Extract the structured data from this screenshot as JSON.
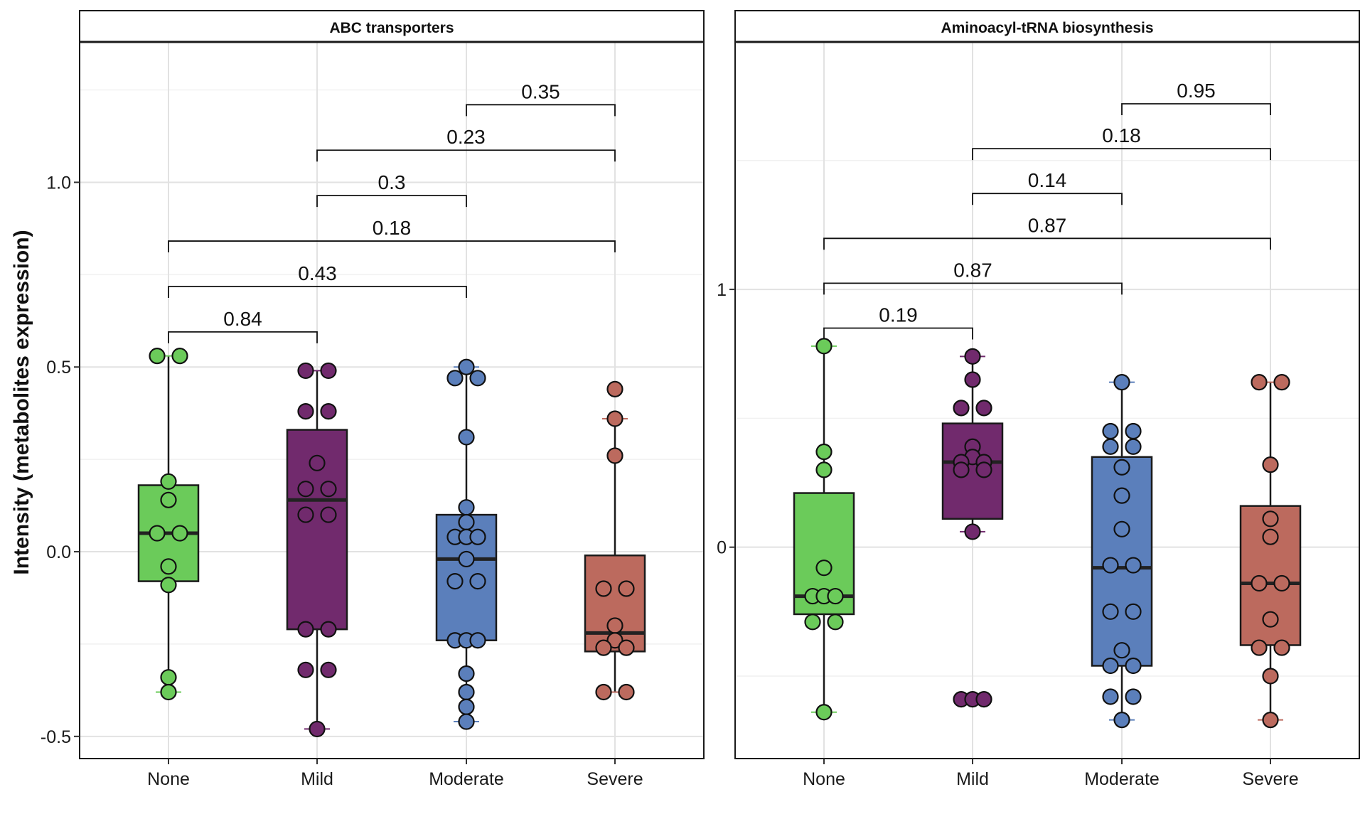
{
  "chart_data": {
    "type": "boxplot",
    "ylabel": "Intensity (metabolites expression)",
    "categories": [
      "None",
      "Mild",
      "Moderate",
      "Severe"
    ],
    "colors": {
      "None": "#6bcb5a",
      "Mild": "#712a6d",
      "Moderate": "#5b7fbb",
      "Severe": "#bc6a5e"
    },
    "panels": [
      {
        "title": "ABC transporters",
        "ylim": [
          -0.56,
          1.38
        ],
        "yticks": [
          -0.5,
          0.0,
          0.5,
          1.0
        ],
        "ytick_labels": [
          "-0.5",
          "0.0",
          "0.5",
          "1.0"
        ],
        "yminor": [
          -0.25,
          0.25,
          0.75,
          1.25
        ],
        "boxes": [
          {
            "group": "None",
            "min": -0.38,
            "q1": -0.08,
            "median": 0.05,
            "q3": 0.18,
            "max": 0.53
          },
          {
            "group": "Mild",
            "min": -0.48,
            "q1": -0.21,
            "median": 0.14,
            "q3": 0.33,
            "max": 0.49
          },
          {
            "group": "Moderate",
            "min": -0.46,
            "q1": -0.24,
            "median": -0.02,
            "q3": 0.1,
            "max": 0.5
          },
          {
            "group": "Severe",
            "min": -0.38,
            "q1": -0.27,
            "median": -0.22,
            "q3": -0.01,
            "max": 0.36
          }
        ],
        "points": [
          {
            "group": "None",
            "values": [
              0.53,
              0.53,
              0.19,
              0.14,
              0.05,
              0.05,
              -0.04,
              -0.09,
              -0.34,
              -0.38
            ]
          },
          {
            "group": "Mild",
            "values": [
              0.49,
              0.49,
              0.38,
              0.38,
              0.24,
              0.17,
              0.17,
              0.1,
              0.1,
              -0.21,
              -0.21,
              -0.32,
              -0.32,
              -0.48
            ]
          },
          {
            "group": "Moderate",
            "values": [
              0.5,
              0.47,
              0.47,
              0.31,
              0.12,
              0.08,
              0.04,
              0.04,
              0.04,
              -0.02,
              -0.08,
              -0.08,
              -0.24,
              -0.24,
              -0.24,
              -0.33,
              -0.38,
              -0.42,
              -0.46
            ]
          },
          {
            "group": "Severe",
            "values": [
              0.44,
              0.36,
              0.26,
              -0.1,
              -0.1,
              -0.2,
              -0.24,
              -0.26,
              -0.26,
              -0.38,
              -0.38
            ]
          }
        ],
        "comparisons": [
          {
            "from": "None",
            "to": "Mild",
            "p": "0.84",
            "y": 0.595
          },
          {
            "from": "None",
            "to": "Moderate",
            "p": "0.43",
            "y": 0.718
          },
          {
            "from": "None",
            "to": "Severe",
            "p": "0.18",
            "y": 0.841
          },
          {
            "from": "Mild",
            "to": "Moderate",
            "p": "0.3",
            "y": 0.964
          },
          {
            "from": "Mild",
            "to": "Severe",
            "p": "0.23",
            "y": 1.087
          },
          {
            "from": "Moderate",
            "to": "Severe",
            "p": "0.35",
            "y": 1.21
          }
        ]
      },
      {
        "title": "Aminoacyl-tRNA biosynthesis",
        "ylim": [
          -0.82,
          1.96
        ],
        "yticks": [
          0,
          1
        ],
        "ytick_labels": [
          "0",
          "1"
        ],
        "yminor": [
          -0.5,
          0.5,
          1.5
        ],
        "boxes": [
          {
            "group": "None",
            "min": -0.64,
            "q1": -0.26,
            "median": -0.19,
            "q3": 0.21,
            "max": 0.78
          },
          {
            "group": "Mild",
            "min": 0.06,
            "q1": 0.11,
            "median": 0.33,
            "q3": 0.48,
            "max": 0.74
          },
          {
            "group": "Moderate",
            "min": -0.67,
            "q1": -0.46,
            "median": -0.08,
            "q3": 0.35,
            "max": 0.64
          },
          {
            "group": "Severe",
            "min": -0.67,
            "q1": -0.38,
            "median": -0.14,
            "q3": 0.16,
            "max": 0.64
          }
        ],
        "points": [
          {
            "group": "None",
            "values": [
              0.78,
              0.37,
              0.3,
              -0.08,
              -0.19,
              -0.19,
              -0.19,
              -0.29,
              -0.29,
              -0.64
            ]
          },
          {
            "group": "Mild",
            "values": [
              0.74,
              0.65,
              0.54,
              0.54,
              0.39,
              0.35,
              0.33,
              0.33,
              0.3,
              0.3,
              0.06,
              -0.59,
              -0.59,
              -0.59
            ]
          },
          {
            "group": "Moderate",
            "values": [
              0.64,
              0.45,
              0.45,
              0.39,
              0.39,
              0.31,
              0.2,
              0.07,
              -0.07,
              -0.07,
              -0.25,
              -0.25,
              -0.4,
              -0.46,
              -0.46,
              -0.58,
              -0.58,
              -0.67
            ]
          },
          {
            "group": "Severe",
            "values": [
              0.64,
              0.64,
              0.32,
              0.11,
              0.04,
              -0.14,
              -0.14,
              -0.28,
              -0.39,
              -0.39,
              -0.5,
              -0.67
            ]
          }
        ],
        "comparisons": [
          {
            "from": "None",
            "to": "Mild",
            "p": "0.19",
            "y": 0.85
          },
          {
            "from": "None",
            "to": "Moderate",
            "p": "0.87",
            "y": 1.024
          },
          {
            "from": "None",
            "to": "Severe",
            "p": "0.87",
            "y": 1.198
          },
          {
            "from": "Mild",
            "to": "Moderate",
            "p": "0.14",
            "y": 1.372
          },
          {
            "from": "Mild",
            "to": "Severe",
            "p": "0.18",
            "y": 1.546
          },
          {
            "from": "Moderate",
            "to": "Severe",
            "p": "0.95",
            "y": 1.72
          }
        ]
      }
    ]
  }
}
